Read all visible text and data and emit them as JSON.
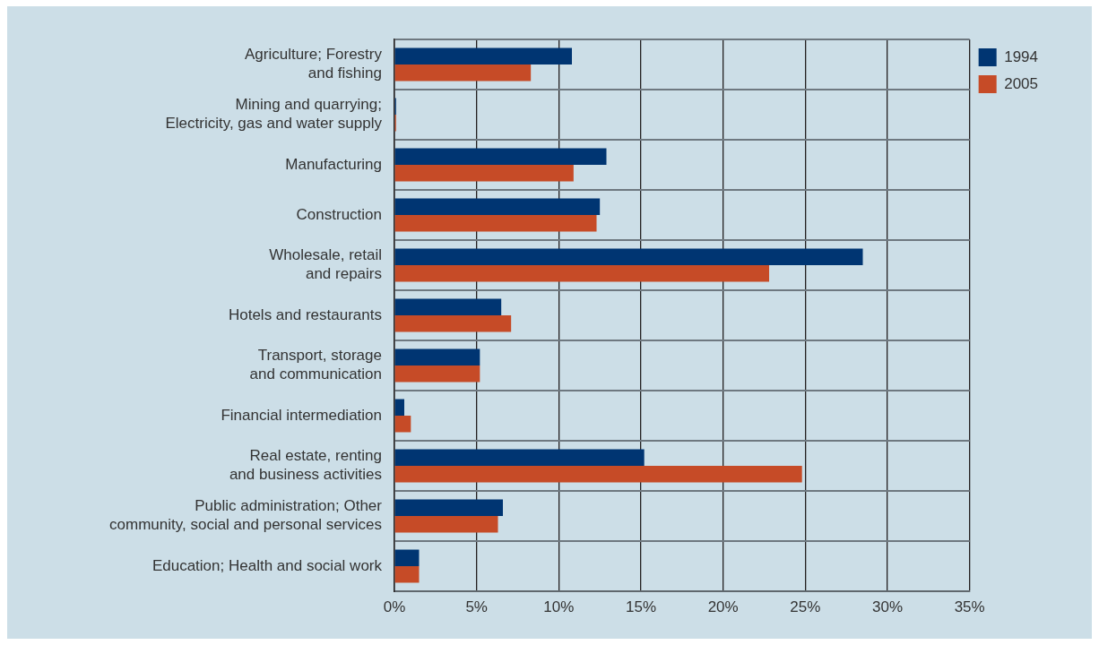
{
  "chart_data": {
    "type": "bar",
    "orientation": "horizontal",
    "categories": [
      "Agriculture; Forestry\nand fishing",
      "Mining and quarrying;\nElectricity, gas and water supply",
      "Manufacturing",
      "Construction",
      "Wholesale, retail\nand repairs",
      "Hotels and restaurants",
      "Transport, storage\nand communication",
      "Financial intermediation",
      "Real estate, renting\nand business activities",
      "Public administration; Other\ncommunity, social and personal services",
      "Education; Health and social work"
    ],
    "series": [
      {
        "name": "1994",
        "color": "#003572",
        "values": [
          10.8,
          0.1,
          12.9,
          12.5,
          28.5,
          6.5,
          5.2,
          0.6,
          15.2,
          6.6,
          1.5
        ]
      },
      {
        "name": "2005",
        "color": "#c64b27",
        "values": [
          8.3,
          0.1,
          10.9,
          12.3,
          22.8,
          7.1,
          5.2,
          1.0,
          24.8,
          6.3,
          1.5
        ]
      }
    ],
    "xlim": [
      0,
      35
    ],
    "xticks": [
      {
        "value": 0,
        "label": "0%"
      },
      {
        "value": 5,
        "label": "5%"
      },
      {
        "value": 10,
        "label": "10%"
      },
      {
        "value": 15,
        "label": "15%"
      },
      {
        "value": 20,
        "label": "20%"
      },
      {
        "value": 25,
        "label": "25%"
      },
      {
        "value": 30,
        "label": "30%"
      },
      {
        "value": 35,
        "label": "35%"
      }
    ],
    "grid": true,
    "legend": "top right"
  }
}
